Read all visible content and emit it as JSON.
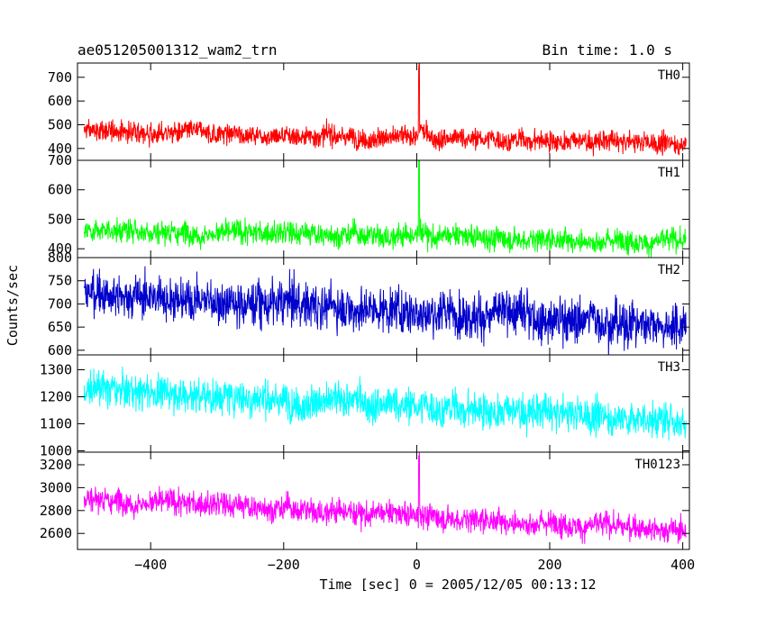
{
  "header": {
    "title": "ae051205001312_wam2_trn",
    "bin_time": "Bin time: 1.0 s"
  },
  "chart_data": {
    "type": "line",
    "xlabel": "Time [sec] 0 = 2005/12/05 00:13:12",
    "ylabel": "Counts/sec",
    "xlim": [
      -510,
      410
    ],
    "x_ticks": [
      -400,
      -200,
      0,
      200,
      400
    ],
    "x_tick_labels": [
      "−400",
      "−200",
      "0",
      "200",
      "400"
    ],
    "time_range": [
      -500,
      405
    ],
    "panels": [
      {
        "label": "TH0",
        "color": "#ff0000",
        "ylim": [
          350,
          760
        ],
        "y_ticks": [
          400,
          500,
          600,
          700
        ],
        "baseline_start": 475,
        "baseline_end": 420,
        "noise": 22,
        "spike": {
          "x": 3,
          "peak": 760,
          "elevated": 510
        }
      },
      {
        "label": "TH1",
        "color": "#00ff00",
        "ylim": [
          370,
          700
        ],
        "y_ticks": [
          400,
          500,
          600,
          700
        ],
        "baseline_start": 465,
        "baseline_end": 425,
        "noise": 20,
        "spike": {
          "x": 3,
          "peak": 700,
          "elevated": 500
        }
      },
      {
        "label": "TH2",
        "color": "#0000cc",
        "ylim": [
          590,
          800
        ],
        "y_ticks": [
          600,
          650,
          700,
          750,
          800
        ],
        "baseline_start": 725,
        "baseline_end": 655,
        "noise": 24,
        "spike": null
      },
      {
        "label": "TH3",
        "color": "#00ffff",
        "ylim": [
          995,
          1355
        ],
        "y_ticks": [
          1000,
          1100,
          1200,
          1300
        ],
        "baseline_start": 1230,
        "baseline_end": 1110,
        "noise": 33,
        "spike": null
      },
      {
        "label": "TH0123",
        "color": "#ff00ff",
        "ylim": [
          2460,
          3310
        ],
        "y_ticks": [
          2600,
          2800,
          3000,
          3200
        ],
        "baseline_start": 2910,
        "baseline_end": 2630,
        "noise": 55,
        "spike": {
          "x": 3,
          "peak": 3310,
          "elevated": 2950
        }
      }
    ]
  }
}
